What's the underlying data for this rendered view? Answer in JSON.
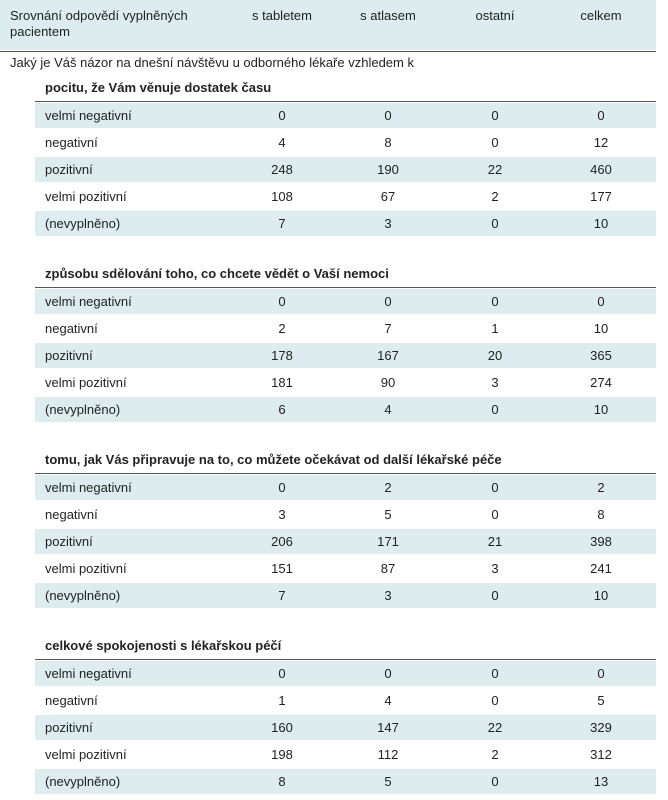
{
  "header": {
    "title": "Srovnání odpovědí vyplněných pacientem",
    "columns": [
      "s tabletem",
      "s atlasem",
      "ostatní",
      "celkem"
    ]
  },
  "question": "Jaký je Váš názor na dnešní návštěvu u odborného lékaře vzhledem k",
  "sections": [
    {
      "title": "pocitu, že Vám věnuje dostatek času",
      "rows": [
        {
          "label": "velmi negativní",
          "values": [
            0,
            0,
            0,
            0
          ]
        },
        {
          "label": "negativní",
          "values": [
            4,
            8,
            0,
            12
          ]
        },
        {
          "label": "pozitivní",
          "values": [
            248,
            190,
            22,
            460
          ]
        },
        {
          "label": "velmi pozitivní",
          "values": [
            108,
            67,
            2,
            177
          ]
        },
        {
          "label": "(nevyplněno)",
          "values": [
            7,
            3,
            0,
            10
          ]
        }
      ]
    },
    {
      "title": "způsobu sdělování toho, co chcete vědět o Vaší nemoci",
      "rows": [
        {
          "label": "velmi negativní",
          "values": [
            0,
            0,
            0,
            0
          ]
        },
        {
          "label": "negativní",
          "values": [
            2,
            7,
            1,
            10
          ]
        },
        {
          "label": "pozitivní",
          "values": [
            178,
            167,
            20,
            365
          ]
        },
        {
          "label": "velmi pozitivní",
          "values": [
            181,
            90,
            3,
            274
          ]
        },
        {
          "label": "(nevyplněno)",
          "values": [
            6,
            4,
            0,
            10
          ]
        }
      ]
    },
    {
      "title": "tomu, jak Vás připravuje na to, co můžete očekávat od další lékařské péče",
      "rows": [
        {
          "label": "velmi negativní",
          "values": [
            0,
            2,
            0,
            2
          ]
        },
        {
          "label": "negativní",
          "values": [
            3,
            5,
            0,
            8
          ]
        },
        {
          "label": "pozitivní",
          "values": [
            206,
            171,
            21,
            398
          ]
        },
        {
          "label": "velmi pozitivní",
          "values": [
            151,
            87,
            3,
            241
          ]
        },
        {
          "label": "(nevyplněno)",
          "values": [
            7,
            3,
            0,
            10
          ]
        }
      ]
    },
    {
      "title": "celkové spokojenosti s lékařskou péčí",
      "rows": [
        {
          "label": "velmi negativní",
          "values": [
            0,
            0,
            0,
            0
          ]
        },
        {
          "label": "negativní",
          "values": [
            1,
            4,
            0,
            5
          ]
        },
        {
          "label": "pozitivní",
          "values": [
            160,
            147,
            22,
            329
          ]
        },
        {
          "label": "velmi pozitivní",
          "values": [
            198,
            112,
            2,
            312
          ]
        },
        {
          "label": "(nevyplněno)",
          "values": [
            8,
            5,
            0,
            13
          ]
        }
      ]
    }
  ]
}
